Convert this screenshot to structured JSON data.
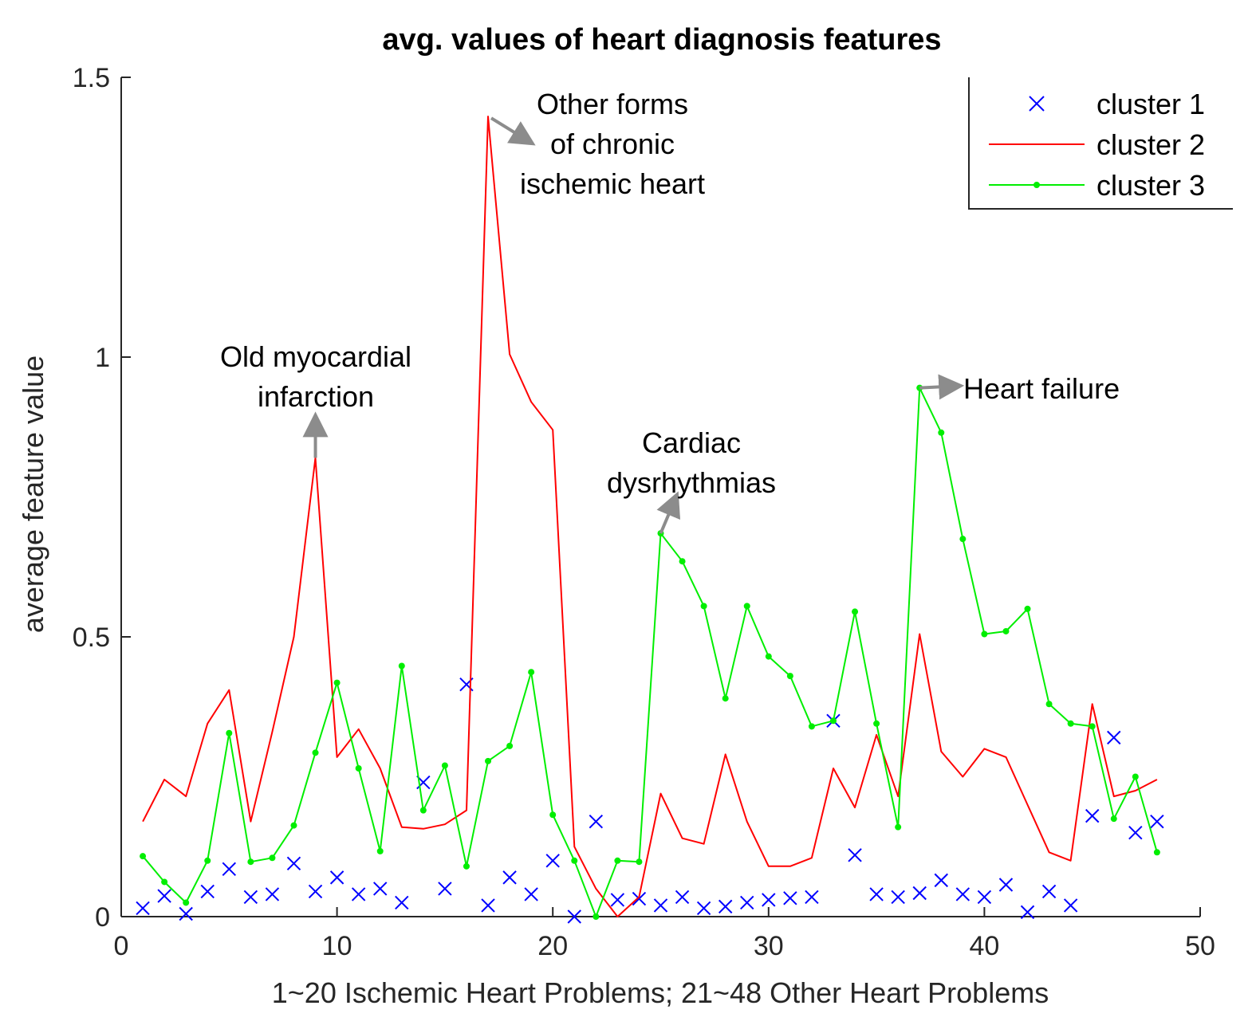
{
  "chart_data": {
    "type": "line",
    "title": "avg. values of heart diagnosis features",
    "xlabel": "1~20 Ischemic Heart Problems; 21~48 Other Heart Problems",
    "ylabel": "average feature value",
    "xlim": [
      0,
      50
    ],
    "ylim": [
      0,
      1.5
    ],
    "xticks": [
      0,
      10,
      20,
      30,
      40,
      50
    ],
    "yticks": [
      0,
      0.5,
      1,
      1.5
    ],
    "ytick_labels": [
      "0",
      "0.5",
      "1",
      "1.5"
    ],
    "grid": false,
    "legend_position": "top-right",
    "x": [
      1,
      2,
      3,
      4,
      5,
      6,
      7,
      8,
      9,
      10,
      11,
      12,
      13,
      14,
      15,
      16,
      17,
      18,
      19,
      20,
      21,
      22,
      23,
      24,
      25,
      26,
      27,
      28,
      29,
      30,
      31,
      32,
      33,
      34,
      35,
      36,
      37,
      38,
      39,
      40,
      41,
      42,
      43,
      44,
      45,
      46,
      47,
      48
    ],
    "series": [
      {
        "name": "cluster 1",
        "style": "x-marker",
        "color": "#0000ff",
        "values": [
          0.015,
          0.037,
          0.005,
          0.045,
          0.085,
          0.035,
          0.04,
          0.095,
          0.045,
          0.07,
          0.04,
          0.05,
          0.025,
          0.24,
          0.05,
          0.415,
          0.02,
          0.07,
          0.04,
          0.1,
          0.0,
          0.17,
          0.03,
          0.032,
          0.02,
          0.035,
          0.015,
          0.018,
          0.025,
          0.03,
          0.033,
          0.035,
          0.35,
          0.11,
          0.04,
          0.035,
          0.042,
          0.065,
          0.04,
          0.035,
          0.057,
          0.008,
          0.045,
          0.02,
          0.18,
          0.32,
          0.15,
          0.17
        ]
      },
      {
        "name": "cluster 2",
        "style": "line",
        "color": "#ff0000",
        "values": [
          0.17,
          0.245,
          0.215,
          0.345,
          0.405,
          0.17,
          0.33,
          0.5,
          0.82,
          0.285,
          0.335,
          0.265,
          0.16,
          0.157,
          0.165,
          0.19,
          1.43,
          1.005,
          0.92,
          0.87,
          0.125,
          0.05,
          0.0,
          0.035,
          0.22,
          0.14,
          0.13,
          0.29,
          0.17,
          0.09,
          0.09,
          0.105,
          0.265,
          0.195,
          0.325,
          0.215,
          0.505,
          0.295,
          0.25,
          0.3,
          0.285,
          0.2,
          0.115,
          0.1,
          0.38,
          0.215,
          0.225,
          0.245
        ]
      },
      {
        "name": "cluster 3",
        "style": "line-dot",
        "color": "#00ee00",
        "values": [
          0.108,
          0.062,
          0.025,
          0.1,
          0.328,
          0.098,
          0.105,
          0.163,
          0.293,
          0.418,
          0.265,
          0.117,
          0.448,
          0.19,
          0.27,
          0.09,
          0.278,
          0.305,
          0.437,
          0.182,
          0.1,
          0.0,
          0.1,
          0.098,
          0.685,
          0.635,
          0.555,
          0.39,
          0.555,
          0.465,
          0.43,
          0.34,
          0.35,
          0.545,
          0.345,
          0.16,
          0.945,
          0.865,
          0.675,
          0.505,
          0.51,
          0.55,
          0.38,
          0.345,
          0.34,
          0.175,
          0.25,
          0.115
        ]
      }
    ],
    "annotations": [
      {
        "lines": [
          "Old myocardial",
          "infarction"
        ],
        "target_x": 9,
        "target_y": 0.82
      },
      {
        "lines": [
          "Other forms",
          "of chronic",
          "ischemic heart"
        ],
        "target_x": 17,
        "target_y": 1.43
      },
      {
        "lines": [
          "Cardiac",
          "dysrhythmias"
        ],
        "target_x": 25,
        "target_y": 0.685
      },
      {
        "lines": [
          "Heart failure"
        ],
        "target_x": 37,
        "target_y": 0.945
      }
    ]
  }
}
